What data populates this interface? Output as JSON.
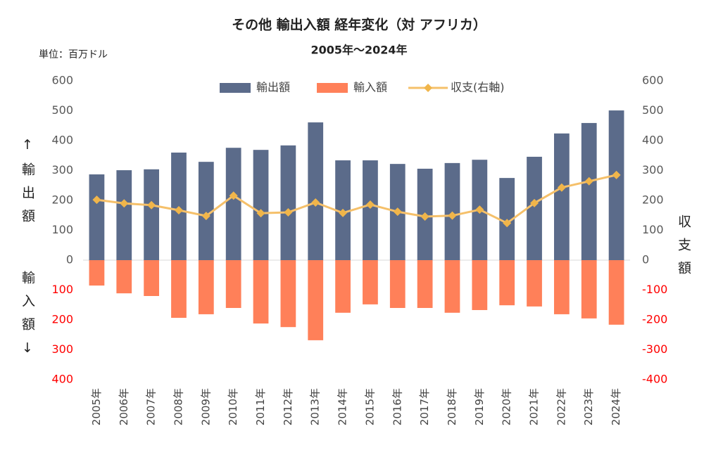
{
  "chart_data": {
    "type": "bar_line",
    "title": "その他 輸出入額 経年変化（対 アフリカ）",
    "subtitle": "2005年～2024年",
    "unit_label": "単位：百万ドル",
    "y_label_top": "↑輸出額",
    "y_label_bottom": "輸入額↓",
    "y2_label": "収支額",
    "categories": [
      "2005年",
      "2006年",
      "2007年",
      "2008年",
      "2009年",
      "2010年",
      "2011年",
      "2012年",
      "2013年",
      "2014年",
      "2015年",
      "2016年",
      "2017年",
      "2018年",
      "2019年",
      "2020年",
      "2021年",
      "2022年",
      "2023年",
      "2024年"
    ],
    "series": [
      {
        "name": "輸出額",
        "kind": "bar",
        "color": "#5b6b8a",
        "values": [
          287,
          301,
          304,
          360,
          329,
          376,
          369,
          384,
          461,
          334,
          334,
          322,
          306,
          325,
          336,
          275,
          346,
          424,
          459,
          501
        ]
      },
      {
        "name": "輸入額",
        "kind": "bar",
        "color": "#ff8059",
        "values": [
          -85,
          -111,
          -120,
          -193,
          -181,
          -160,
          -212,
          -224,
          -268,
          -176,
          -148,
          -160,
          -160,
          -176,
          -167,
          -151,
          -155,
          -181,
          -195,
          -216
        ]
      },
      {
        "name": "収支(右軸)",
        "kind": "line",
        "axis": "y2",
        "color": "#f5c06a",
        "marker_color": "#f0b54a",
        "values": [
          202,
          190,
          184,
          167,
          148,
          216,
          157,
          160,
          193,
          158,
          186,
          162,
          146,
          149,
          169,
          124,
          191,
          243,
          264,
          285
        ]
      }
    ],
    "ylim": [
      -400,
      600
    ],
    "yticks": [
      600,
      500,
      400,
      300,
      200,
      100,
      0,
      {
        "value": -100,
        "label": "100"
      },
      {
        "value": -200,
        "label": "200"
      },
      {
        "value": -300,
        "label": "300"
      },
      {
        "value": -400,
        "label": "400"
      }
    ],
    "y2lim": [
      -400,
      600
    ],
    "y2ticks": [
      600,
      500,
      400,
      300,
      200,
      100,
      0,
      -100,
      -200,
      -300,
      -400
    ],
    "negative_tick_color": "#ff0000",
    "legend": "top"
  }
}
